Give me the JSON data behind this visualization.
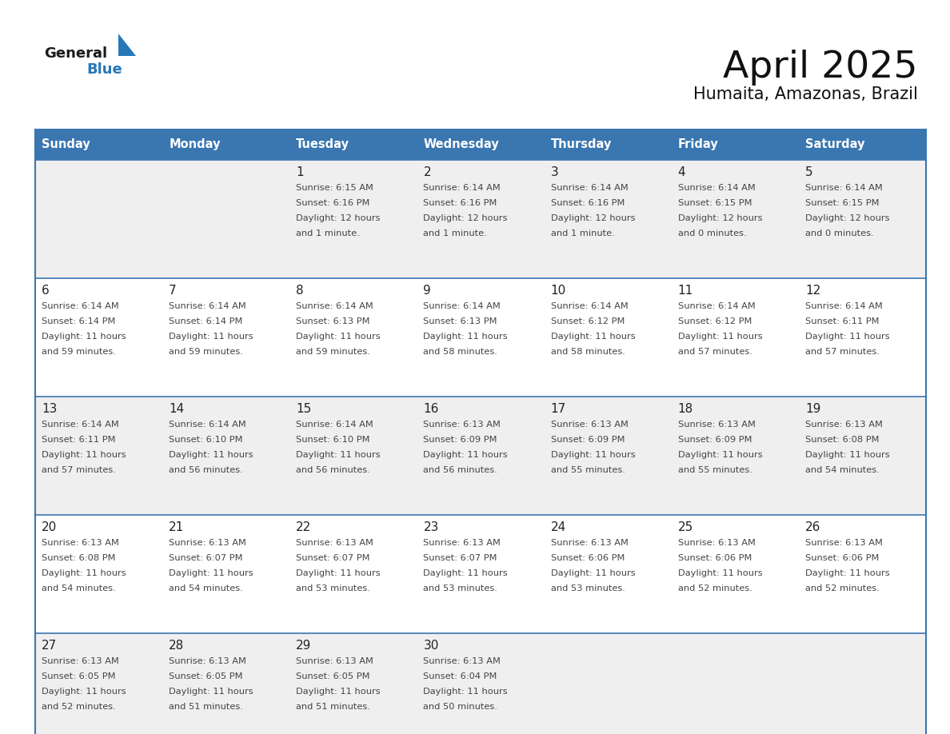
{
  "title": "April 2025",
  "subtitle": "Humaita, Amazonas, Brazil",
  "header_bg": "#3a76b0",
  "header_text_color": "#ffffff",
  "day_names": [
    "Sunday",
    "Monday",
    "Tuesday",
    "Wednesday",
    "Thursday",
    "Friday",
    "Saturday"
  ],
  "row_bg_even": "#efefef",
  "row_bg_odd": "#ffffff",
  "cell_text_color": "#444444",
  "date_text_color": "#222222",
  "grid_line_color": "#3a76b0",
  "logo_general_color": "#1a1a1a",
  "logo_blue_color": "#2878b8",
  "calendar": [
    [
      null,
      null,
      {
        "day": 1,
        "sunrise": "Sunrise: 6:15 AM",
        "sunset": "Sunset: 6:16 PM",
        "daylight": "Daylight: 12 hours",
        "daylight2": "and 1 minute."
      },
      {
        "day": 2,
        "sunrise": "Sunrise: 6:14 AM",
        "sunset": "Sunset: 6:16 PM",
        "daylight": "Daylight: 12 hours",
        "daylight2": "and 1 minute."
      },
      {
        "day": 3,
        "sunrise": "Sunrise: 6:14 AM",
        "sunset": "Sunset: 6:16 PM",
        "daylight": "Daylight: 12 hours",
        "daylight2": "and 1 minute."
      },
      {
        "day": 4,
        "sunrise": "Sunrise: 6:14 AM",
        "sunset": "Sunset: 6:15 PM",
        "daylight": "Daylight: 12 hours",
        "daylight2": "and 0 minutes."
      },
      {
        "day": 5,
        "sunrise": "Sunrise: 6:14 AM",
        "sunset": "Sunset: 6:15 PM",
        "daylight": "Daylight: 12 hours",
        "daylight2": "and 0 minutes."
      }
    ],
    [
      {
        "day": 6,
        "sunrise": "Sunrise: 6:14 AM",
        "sunset": "Sunset: 6:14 PM",
        "daylight": "Daylight: 11 hours",
        "daylight2": "and 59 minutes."
      },
      {
        "day": 7,
        "sunrise": "Sunrise: 6:14 AM",
        "sunset": "Sunset: 6:14 PM",
        "daylight": "Daylight: 11 hours",
        "daylight2": "and 59 minutes."
      },
      {
        "day": 8,
        "sunrise": "Sunrise: 6:14 AM",
        "sunset": "Sunset: 6:13 PM",
        "daylight": "Daylight: 11 hours",
        "daylight2": "and 59 minutes."
      },
      {
        "day": 9,
        "sunrise": "Sunrise: 6:14 AM",
        "sunset": "Sunset: 6:13 PM",
        "daylight": "Daylight: 11 hours",
        "daylight2": "and 58 minutes."
      },
      {
        "day": 10,
        "sunrise": "Sunrise: 6:14 AM",
        "sunset": "Sunset: 6:12 PM",
        "daylight": "Daylight: 11 hours",
        "daylight2": "and 58 minutes."
      },
      {
        "day": 11,
        "sunrise": "Sunrise: 6:14 AM",
        "sunset": "Sunset: 6:12 PM",
        "daylight": "Daylight: 11 hours",
        "daylight2": "and 57 minutes."
      },
      {
        "day": 12,
        "sunrise": "Sunrise: 6:14 AM",
        "sunset": "Sunset: 6:11 PM",
        "daylight": "Daylight: 11 hours",
        "daylight2": "and 57 minutes."
      }
    ],
    [
      {
        "day": 13,
        "sunrise": "Sunrise: 6:14 AM",
        "sunset": "Sunset: 6:11 PM",
        "daylight": "Daylight: 11 hours",
        "daylight2": "and 57 minutes."
      },
      {
        "day": 14,
        "sunrise": "Sunrise: 6:14 AM",
        "sunset": "Sunset: 6:10 PM",
        "daylight": "Daylight: 11 hours",
        "daylight2": "and 56 minutes."
      },
      {
        "day": 15,
        "sunrise": "Sunrise: 6:14 AM",
        "sunset": "Sunset: 6:10 PM",
        "daylight": "Daylight: 11 hours",
        "daylight2": "and 56 minutes."
      },
      {
        "day": 16,
        "sunrise": "Sunrise: 6:13 AM",
        "sunset": "Sunset: 6:09 PM",
        "daylight": "Daylight: 11 hours",
        "daylight2": "and 56 minutes."
      },
      {
        "day": 17,
        "sunrise": "Sunrise: 6:13 AM",
        "sunset": "Sunset: 6:09 PM",
        "daylight": "Daylight: 11 hours",
        "daylight2": "and 55 minutes."
      },
      {
        "day": 18,
        "sunrise": "Sunrise: 6:13 AM",
        "sunset": "Sunset: 6:09 PM",
        "daylight": "Daylight: 11 hours",
        "daylight2": "and 55 minutes."
      },
      {
        "day": 19,
        "sunrise": "Sunrise: 6:13 AM",
        "sunset": "Sunset: 6:08 PM",
        "daylight": "Daylight: 11 hours",
        "daylight2": "and 54 minutes."
      }
    ],
    [
      {
        "day": 20,
        "sunrise": "Sunrise: 6:13 AM",
        "sunset": "Sunset: 6:08 PM",
        "daylight": "Daylight: 11 hours",
        "daylight2": "and 54 minutes."
      },
      {
        "day": 21,
        "sunrise": "Sunrise: 6:13 AM",
        "sunset": "Sunset: 6:07 PM",
        "daylight": "Daylight: 11 hours",
        "daylight2": "and 54 minutes."
      },
      {
        "day": 22,
        "sunrise": "Sunrise: 6:13 AM",
        "sunset": "Sunset: 6:07 PM",
        "daylight": "Daylight: 11 hours",
        "daylight2": "and 53 minutes."
      },
      {
        "day": 23,
        "sunrise": "Sunrise: 6:13 AM",
        "sunset": "Sunset: 6:07 PM",
        "daylight": "Daylight: 11 hours",
        "daylight2": "and 53 minutes."
      },
      {
        "day": 24,
        "sunrise": "Sunrise: 6:13 AM",
        "sunset": "Sunset: 6:06 PM",
        "daylight": "Daylight: 11 hours",
        "daylight2": "and 53 minutes."
      },
      {
        "day": 25,
        "sunrise": "Sunrise: 6:13 AM",
        "sunset": "Sunset: 6:06 PM",
        "daylight": "Daylight: 11 hours",
        "daylight2": "and 52 minutes."
      },
      {
        "day": 26,
        "sunrise": "Sunrise: 6:13 AM",
        "sunset": "Sunset: 6:06 PM",
        "daylight": "Daylight: 11 hours",
        "daylight2": "and 52 minutes."
      }
    ],
    [
      {
        "day": 27,
        "sunrise": "Sunrise: 6:13 AM",
        "sunset": "Sunset: 6:05 PM",
        "daylight": "Daylight: 11 hours",
        "daylight2": "and 52 minutes."
      },
      {
        "day": 28,
        "sunrise": "Sunrise: 6:13 AM",
        "sunset": "Sunset: 6:05 PM",
        "daylight": "Daylight: 11 hours",
        "daylight2": "and 51 minutes."
      },
      {
        "day": 29,
        "sunrise": "Sunrise: 6:13 AM",
        "sunset": "Sunset: 6:05 PM",
        "daylight": "Daylight: 11 hours",
        "daylight2": "and 51 minutes."
      },
      {
        "day": 30,
        "sunrise": "Sunrise: 6:13 AM",
        "sunset": "Sunset: 6:04 PM",
        "daylight": "Daylight: 11 hours",
        "daylight2": "and 50 minutes."
      },
      null,
      null,
      null
    ]
  ]
}
